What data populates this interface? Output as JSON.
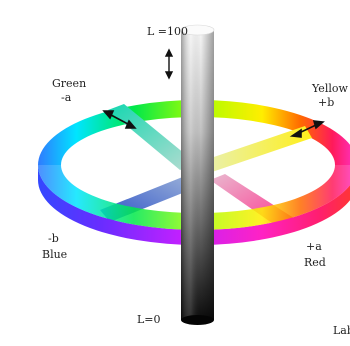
{
  "labels": {
    "l_top": "L =100",
    "l_bottom": "L=0",
    "green": "Green",
    "minus_a": "-a",
    "yellow": "Yellow",
    "plus_b": "+b",
    "minus_b": "-b",
    "blue": "Blue",
    "plus_a": "+a",
    "red": "Red",
    "corner": "Lab"
  }
}
